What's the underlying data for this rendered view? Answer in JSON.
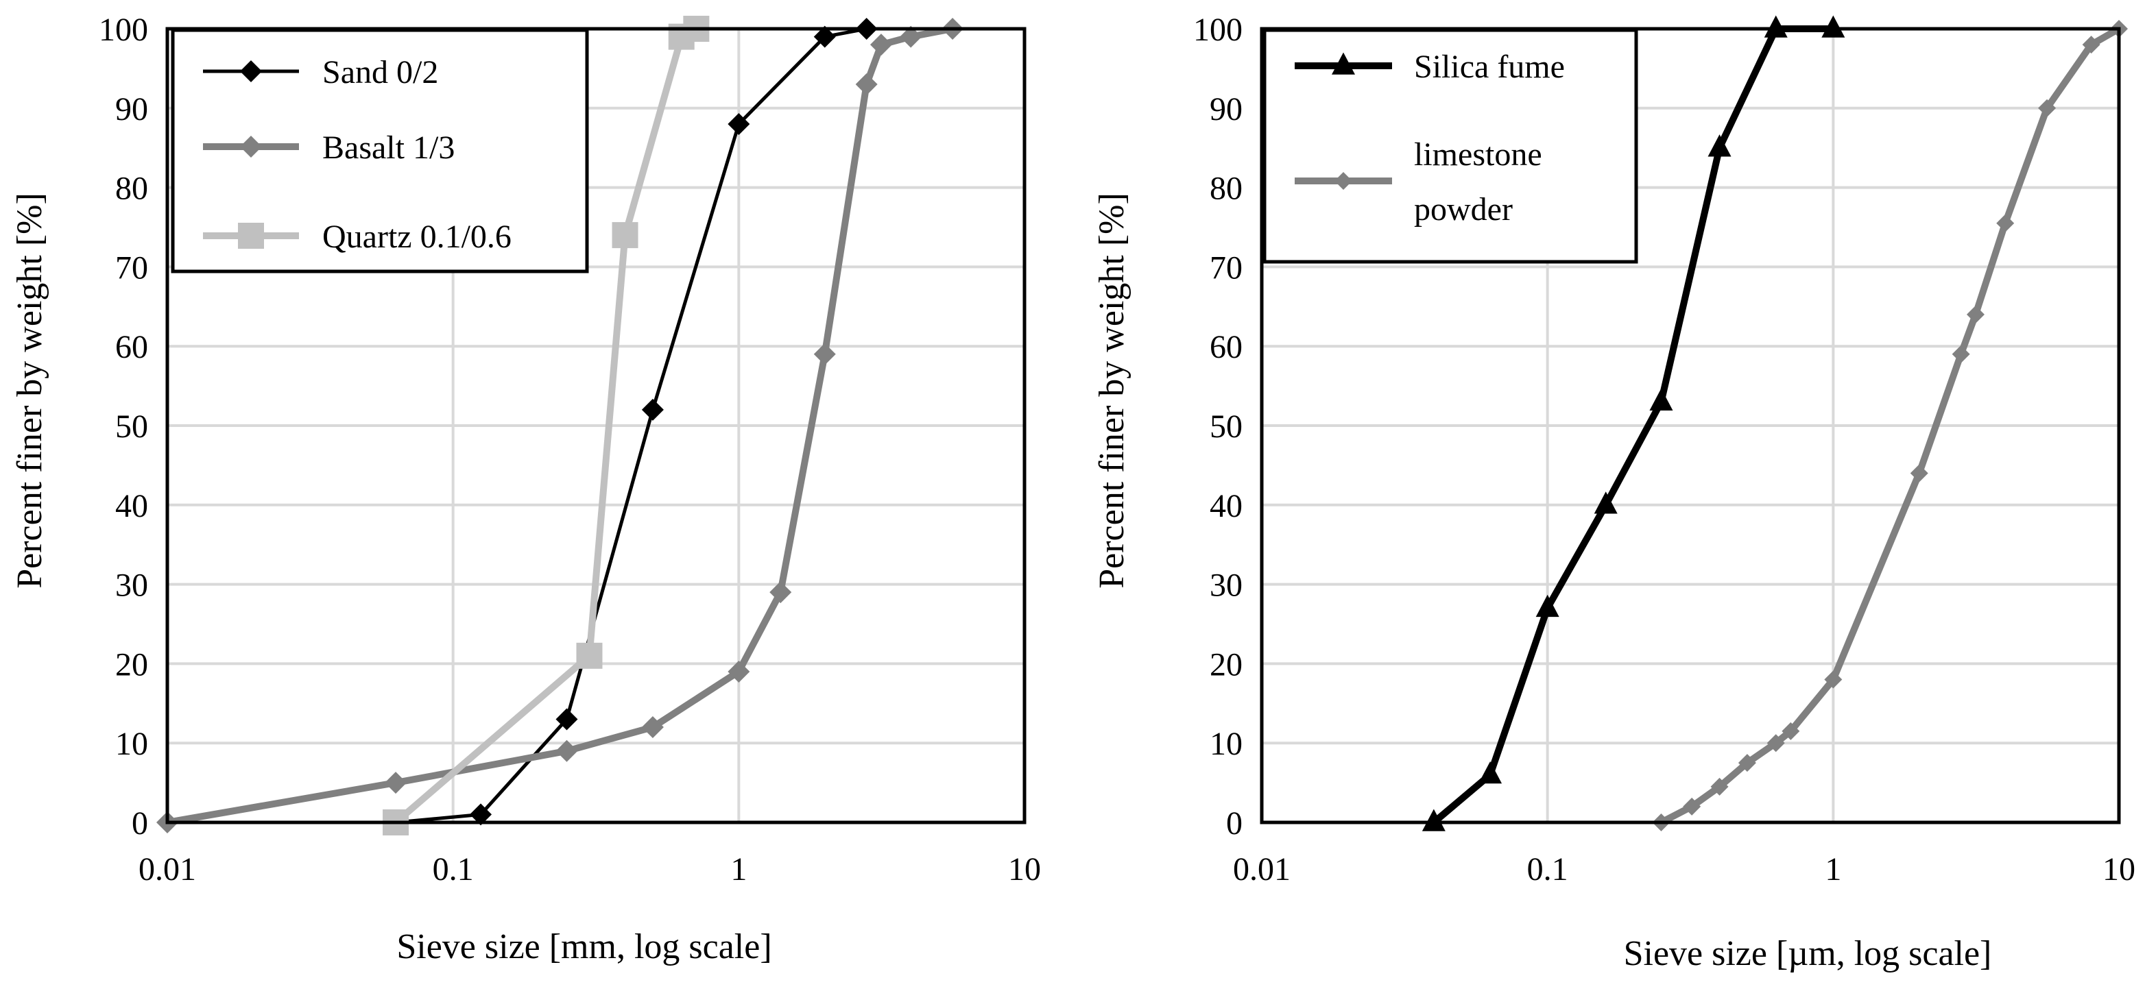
{
  "chart_data": [
    {
      "type": "line",
      "xscale": "log",
      "xlim": [
        0.01,
        10
      ],
      "ylim": [
        0,
        100
      ],
      "yticks": [
        "0",
        "10",
        "20",
        "30",
        "40",
        "50",
        "60",
        "70",
        "80",
        "90",
        "100"
      ],
      "xticks": [
        "0.01",
        "0.1",
        "1",
        "10"
      ],
      "xlabel": "Sieve size [mm, log scale]",
      "ylabel": "Percent finer by weight [%]",
      "grid": true,
      "legend": "top-left",
      "series": [
        {
          "name": "Sand 0/2",
          "color": "#000000",
          "marker": "diamond",
          "x": [
            0.063,
            0.125,
            0.25,
            0.5,
            1,
            2,
            2.8
          ],
          "y": [
            0,
            1,
            13,
            52,
            88,
            99,
            100
          ]
        },
        {
          "name": "Basalt 1/3",
          "color": "#808080",
          "marker": "diamond",
          "x": [
            0.01,
            0.063,
            0.25,
            0.5,
            1,
            1.4,
            2,
            2.8,
            3.15,
            4,
            5.6
          ],
          "y": [
            0,
            5,
            9,
            12,
            19,
            29,
            59,
            93,
            98,
            99,
            100
          ]
        },
        {
          "name": "Quartz 0.1/0.6",
          "color": "#c0c0c0",
          "marker": "square",
          "x": [
            0.063,
            0.3,
            0.4,
            0.63,
            0.71
          ],
          "y": [
            0,
            21,
            74,
            99,
            100
          ]
        }
      ]
    },
    {
      "type": "line",
      "xscale": "log",
      "xlim": [
        0.01,
        10
      ],
      "ylim": [
        0,
        100
      ],
      "yticks": [
        "0",
        "10",
        "20",
        "30",
        "40",
        "50",
        "60",
        "70",
        "80",
        "90",
        "100"
      ],
      "xticks": [
        "0.01",
        "0.1",
        "1",
        "10"
      ],
      "xlabel": "Sieve size [µm, log scale]",
      "ylabel": "Percent finer by weight [%]",
      "grid": true,
      "legend": "top-left",
      "series": [
        {
          "name": "Silica fume",
          "color": "#000000",
          "marker": "triangle",
          "x": [
            0.04,
            0.063,
            0.1,
            0.16,
            0.25,
            0.4,
            0.63,
            1
          ],
          "y": [
            0,
            6,
            27,
            40,
            53,
            85,
            100,
            100
          ]
        },
        {
          "name": "limestone powder",
          "legend_lines": [
            "limestone",
            "powder"
          ],
          "color": "#808080",
          "marker": "diamond",
          "x": [
            0.25,
            0.32,
            0.4,
            0.5,
            0.63,
            0.71,
            1,
            2,
            2.8,
            3.15,
            4,
            5.6,
            8,
            10
          ],
          "y": [
            0,
            2,
            4.5,
            7.5,
            10,
            11.5,
            18,
            44,
            59,
            64,
            75.5,
            90,
            98,
            100
          ]
        }
      ]
    }
  ]
}
